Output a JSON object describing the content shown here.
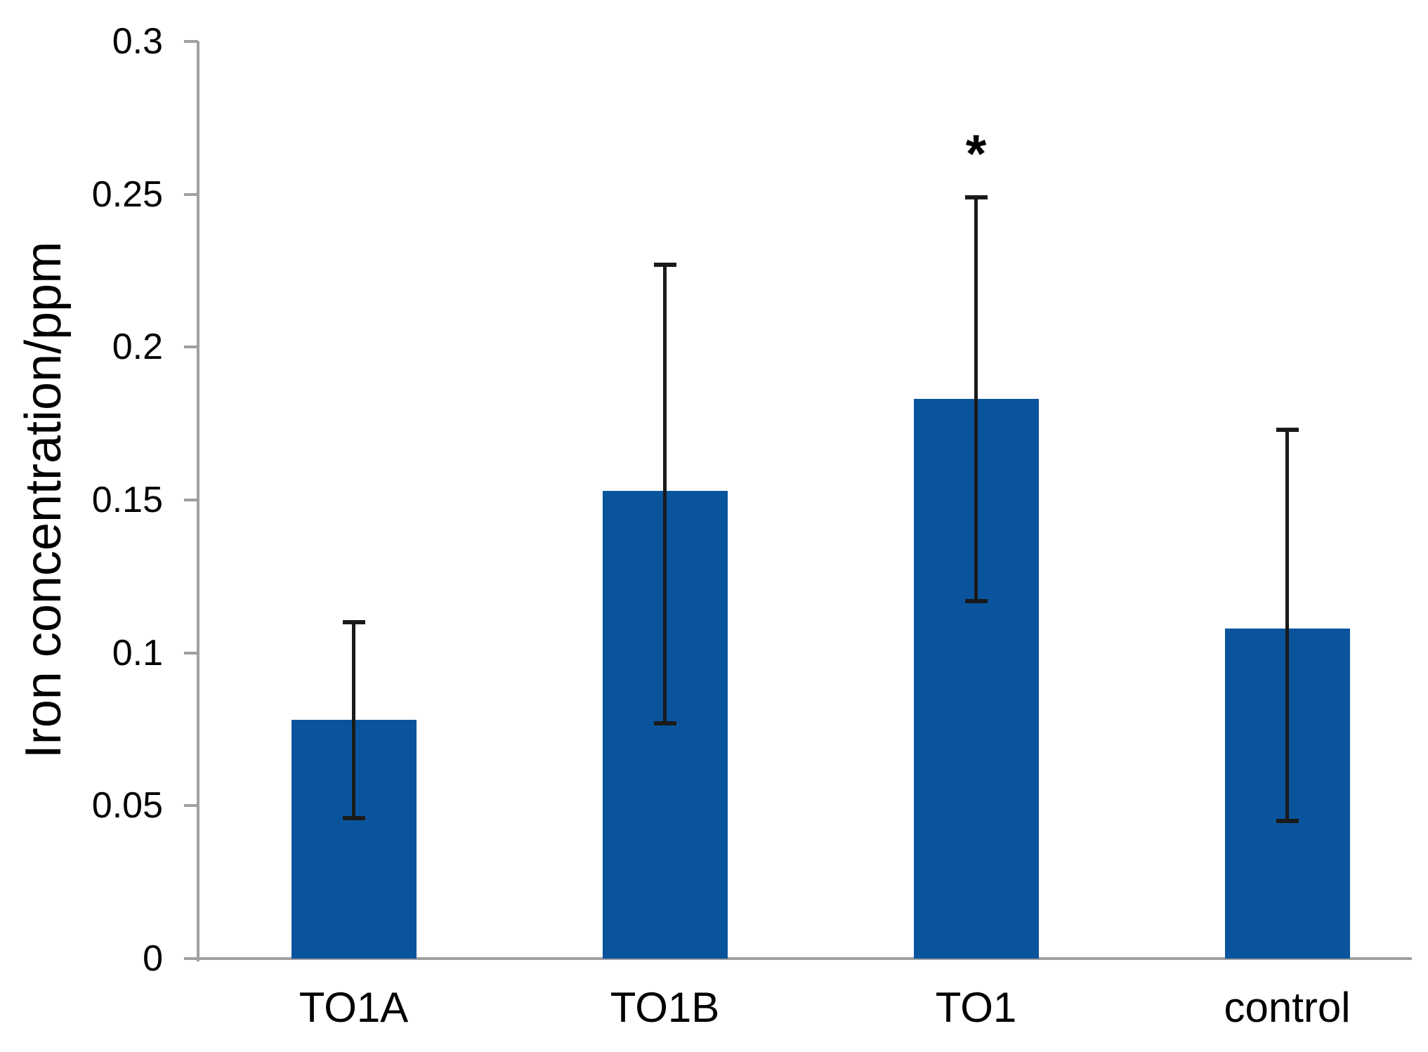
{
  "chart_data": {
    "type": "bar",
    "title": "",
    "xlabel": "",
    "ylabel": "Iron concentration/ppm",
    "categories": [
      "TO1A",
      "TO1B",
      "TO1",
      "control"
    ],
    "values": [
      0.078,
      0.153,
      0.183,
      0.108
    ],
    "error_upper": [
      0.11,
      0.227,
      0.249,
      0.173
    ],
    "error_lower": [
      0.046,
      0.077,
      0.117,
      0.045
    ],
    "yticks": [
      0,
      0.05,
      0.1,
      0.15,
      0.2,
      0.25,
      0.3
    ],
    "ytick_labels": [
      "0",
      "0.05",
      "0.1",
      "0.15",
      "0.2",
      "0.25",
      "0.3"
    ],
    "ylim": [
      0,
      0.3
    ],
    "grid": false,
    "legend_position": "none",
    "annotations": [
      {
        "text": "*",
        "category": "TO1",
        "value": 0.263
      }
    ],
    "colors": {
      "bar_fill": "#0a549e",
      "axis_line": "#a0a0a0",
      "error_bar": "#1a1a1a",
      "text": "#000000",
      "background": "#ffffff"
    }
  }
}
